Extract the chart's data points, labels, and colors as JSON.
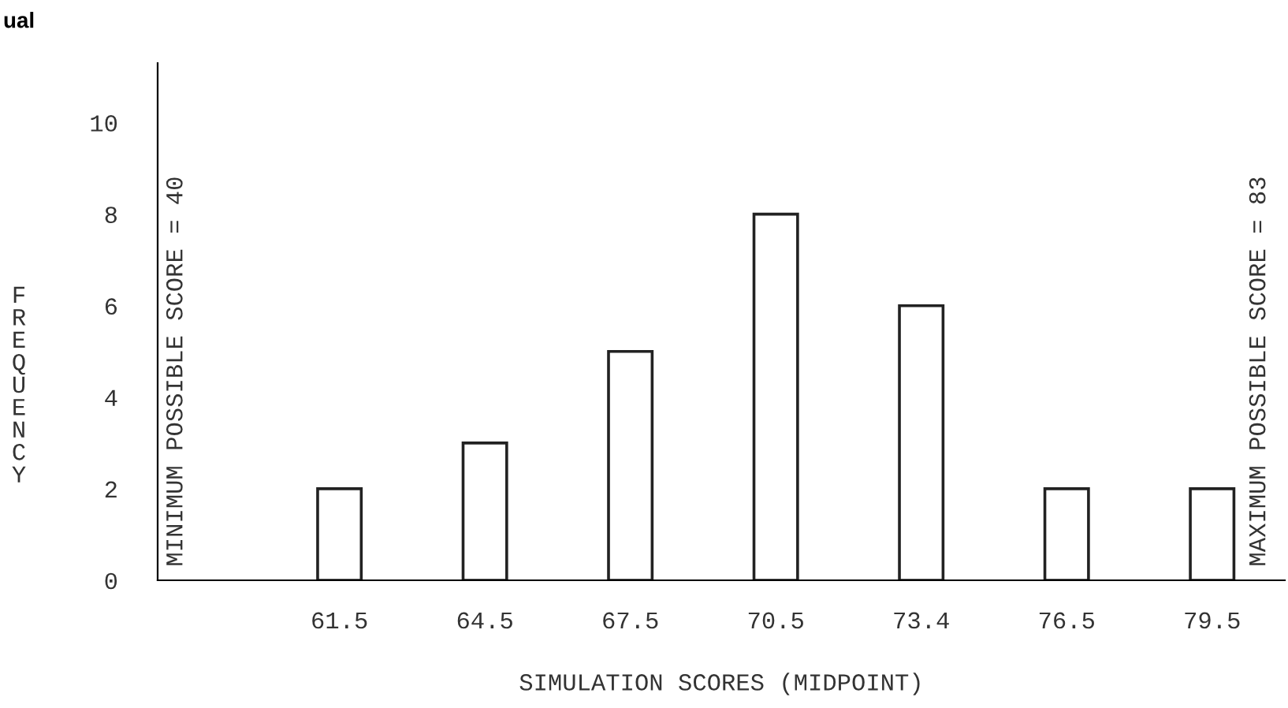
{
  "chart_data": {
    "type": "bar",
    "xlabel": "SIMULATION SCORES (MIDPOINT)",
    "ylabel": "FREQUENCY",
    "categories": [
      "61.5",
      "64.5",
      "67.5",
      "70.5",
      "73.4",
      "76.5",
      "79.5"
    ],
    "values": [
      2,
      3,
      5,
      8,
      6,
      2,
      2
    ],
    "color": "#ffffff",
    "ylim": [
      0,
      11.3
    ],
    "yticks": [
      0,
      2,
      4,
      6,
      8,
      10
    ],
    "grid": false,
    "annotations": [
      "MINIMUM POSSIBLE SCORE = 40",
      "MAXIMUM POSSIBLE SCORE = 83",
      "ual"
    ]
  }
}
